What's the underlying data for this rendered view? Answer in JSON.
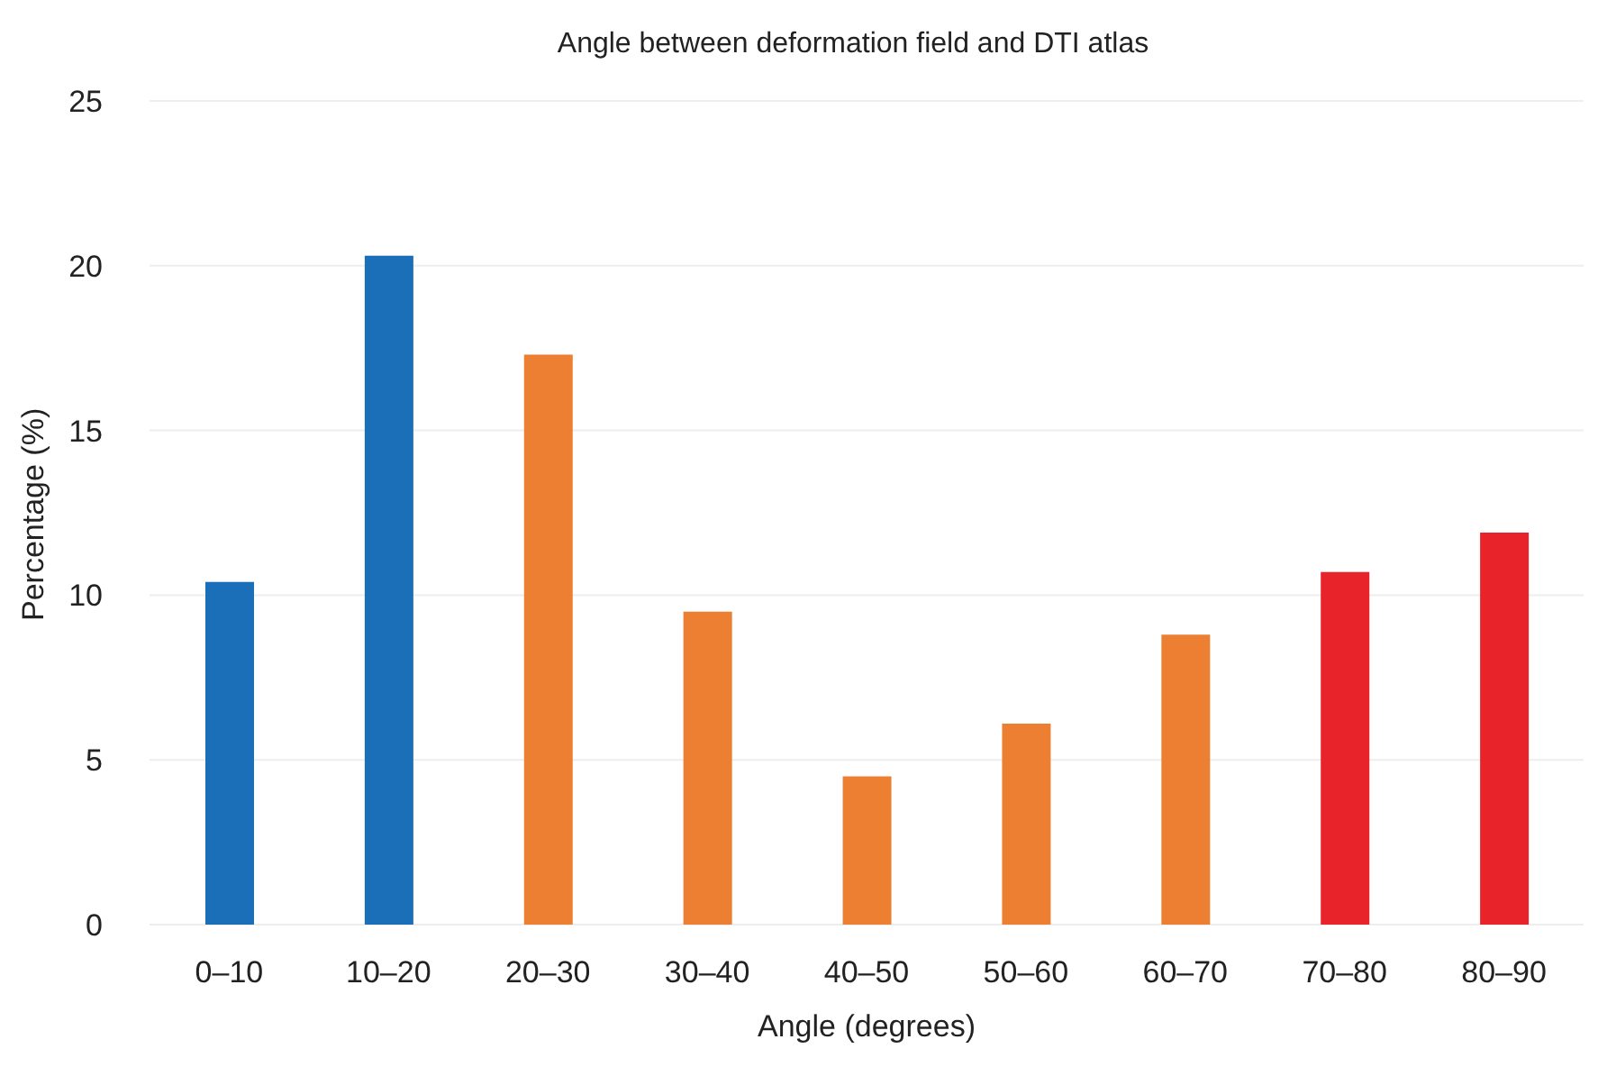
{
  "chart_data": {
    "type": "bar",
    "title": "Angle between deformation field and DTI atlas",
    "xlabel": "Angle (degrees)",
    "ylabel": "Percentage (%)",
    "categories": [
      "0–10",
      "10–20",
      "20–30",
      "30–40",
      "40–50",
      "50–60",
      "60–70",
      "70–80",
      "80–90"
    ],
    "values": [
      10.4,
      20.3,
      17.3,
      9.5,
      4.5,
      6.1,
      8.8,
      10.7,
      11.9
    ],
    "colors": [
      "#1b6fb9",
      "#1b6fb9",
      "#ec7f32",
      "#ec7f32",
      "#ec7f32",
      "#ec7f32",
      "#ec7f32",
      "#e8232a",
      "#e8232a"
    ],
    "ylim": [
      0,
      25
    ],
    "yticks": [
      0,
      5,
      10,
      15,
      20,
      25
    ],
    "grid": "y"
  }
}
